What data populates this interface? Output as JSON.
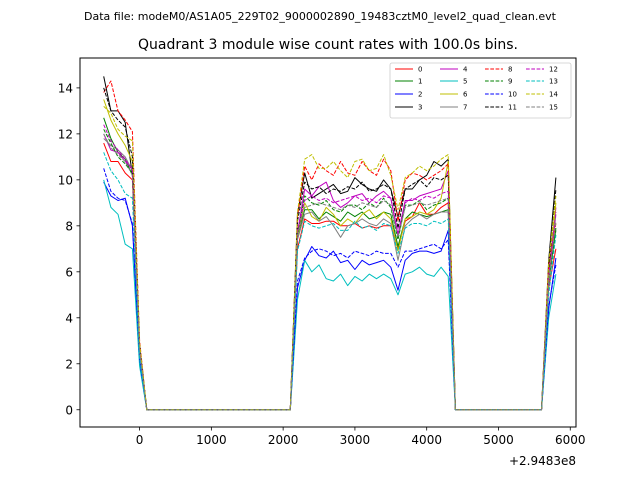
{
  "suptitle": "Data file: modeM0/AS1A05_229T02_9000002890_19483cztM0_level2_quad_clean.evt",
  "chart_data": {
    "type": "line",
    "title": "Quadrant 3 module wise count rates with 100.0s bins.",
    "xlabel": "",
    "ylabel": "",
    "x_offset_label": "+2.9483e8",
    "xlim": [
      -830,
      6080
    ],
    "ylim": [
      -0.75,
      15.3
    ],
    "xticks": [
      0,
      1000,
      2000,
      3000,
      4000,
      5000,
      6000
    ],
    "yticks": [
      0,
      2,
      4,
      6,
      8,
      10,
      12,
      14
    ],
    "legend": {
      "location": "top-right",
      "columns": 4
    },
    "x": [
      -500,
      -400,
      -300,
      -200,
      -100,
      0,
      100,
      200,
      300,
      400,
      500,
      600,
      700,
      800,
      900,
      1000,
      1100,
      1200,
      1300,
      1400,
      1500,
      1600,
      1700,
      1800,
      1900,
      2000,
      2100,
      2200,
      2300,
      2400,
      2500,
      2600,
      2700,
      2800,
      2900,
      3000,
      3100,
      3200,
      3300,
      3400,
      3500,
      3600,
      3700,
      3800,
      3900,
      4000,
      4100,
      4200,
      4300,
      4400,
      4500,
      4600,
      4700,
      4800,
      4900,
      5000,
      5100,
      5200,
      5300,
      5400,
      5500,
      5600,
      5700,
      5800
    ],
    "series": [
      {
        "name": "0",
        "color": "#ff0000",
        "dash": "solid",
        "values": [
          11.6,
          10.8,
          10.8,
          10.3,
          10.0,
          2.5,
          0,
          0,
          0,
          0,
          0,
          0,
          0,
          0,
          0,
          0,
          0,
          0,
          0,
          0,
          0,
          0,
          0,
          0,
          0,
          0,
          0,
          7.0,
          8.3,
          8.1,
          8.1,
          8.2,
          8.2,
          8.0,
          8.0,
          8.1,
          7.9,
          8.0,
          7.9,
          8.0,
          8.0,
          7.0,
          8.2,
          8.4,
          9.0,
          8.5,
          8.5,
          8.8,
          9.0,
          0,
          0,
          0,
          0,
          0,
          0,
          0,
          0,
          0,
          0,
          0,
          0,
          0,
          5.3,
          7.0
        ]
      },
      {
        "name": "1",
        "color": "#008000",
        "dash": "solid",
        "values": [
          12.7,
          11.8,
          11.2,
          10.9,
          10.2,
          2.6,
          0,
          0,
          0,
          0,
          0,
          0,
          0,
          0,
          0,
          0,
          0,
          0,
          0,
          0,
          0,
          0,
          0,
          0,
          0,
          0,
          0,
          7.5,
          8.7,
          8.7,
          8.3,
          8.6,
          8.4,
          8.2,
          8.6,
          8.4,
          8.6,
          8.3,
          8.4,
          8.6,
          8.5,
          7.1,
          8.3,
          8.6,
          8.5,
          8.4,
          8.5,
          8.6,
          8.7,
          0,
          0,
          0,
          0,
          0,
          0,
          0,
          0,
          0,
          0,
          0,
          0,
          0,
          5.5,
          7.9
        ]
      },
      {
        "name": "2",
        "color": "#0000ff",
        "dash": "solid",
        "values": [
          9.9,
          9.3,
          9.1,
          9.2,
          8.0,
          2.1,
          0,
          0,
          0,
          0,
          0,
          0,
          0,
          0,
          0,
          0,
          0,
          0,
          0,
          0,
          0,
          0,
          0,
          0,
          0,
          0,
          0,
          5.3,
          6.5,
          7.1,
          6.7,
          6.6,
          6.9,
          6.4,
          6.5,
          6.1,
          6.5,
          6.3,
          6.4,
          6.5,
          6.2,
          5.2,
          6.5,
          6.8,
          6.9,
          6.9,
          6.8,
          6.9,
          7.8,
          0,
          0,
          0,
          0,
          0,
          0,
          0,
          0,
          0,
          0,
          0,
          0,
          0,
          4.4,
          6.6
        ]
      },
      {
        "name": "3",
        "color": "#000000",
        "dash": "solid",
        "values": [
          14.5,
          13.0,
          13.0,
          12.5,
          10.2,
          2.7,
          0,
          0,
          0,
          0,
          0,
          0,
          0,
          0,
          0,
          0,
          0,
          0,
          0,
          0,
          0,
          0,
          0,
          0,
          0,
          0,
          0,
          8.5,
          10.3,
          9.2,
          9.4,
          9.6,
          9.8,
          9.4,
          9.5,
          10.1,
          9.8,
          9.6,
          9.5,
          10.0,
          9.6,
          8.4,
          9.6,
          9.6,
          10.0,
          10.2,
          10.8,
          10.6,
          10.9,
          0,
          0,
          0,
          0,
          0,
          0,
          0,
          0,
          0,
          0,
          0,
          0,
          0,
          6.5,
          10.1
        ]
      },
      {
        "name": "4",
        "color": "#bf00bf",
        "dash": "solid",
        "values": [
          12.0,
          11.3,
          11.2,
          10.8,
          10.5,
          2.6,
          0,
          0,
          0,
          0,
          0,
          0,
          0,
          0,
          0,
          0,
          0,
          0,
          0,
          0,
          0,
          0,
          0,
          0,
          0,
          0,
          0,
          7.7,
          9.6,
          9.3,
          9.7,
          9.9,
          9.1,
          8.8,
          9.0,
          9.3,
          9.4,
          9.0,
          9.3,
          9.5,
          9.2,
          7.6,
          9.1,
          9.1,
          9.3,
          9.4,
          9.5,
          9.6,
          10.4,
          0,
          0,
          0,
          0,
          0,
          0,
          0,
          0,
          0,
          0,
          0,
          0,
          0,
          5.7,
          8.8
        ]
      },
      {
        "name": "5",
        "color": "#00bfbf",
        "dash": "solid",
        "values": [
          10.0,
          8.8,
          8.5,
          7.2,
          7.0,
          1.9,
          0,
          0,
          0,
          0,
          0,
          0,
          0,
          0,
          0,
          0,
          0,
          0,
          0,
          0,
          0,
          0,
          0,
          0,
          0,
          0,
          0,
          4.8,
          6.5,
          6.0,
          6.3,
          5.7,
          5.6,
          5.9,
          5.4,
          5.8,
          5.6,
          5.9,
          5.7,
          5.9,
          5.7,
          5.0,
          5.9,
          6.0,
          6.2,
          5.9,
          5.8,
          6.2,
          5.8,
          0,
          0,
          0,
          0,
          0,
          0,
          0,
          0,
          0,
          0,
          0,
          0,
          0,
          4.0,
          5.9
        ]
      },
      {
        "name": "6",
        "color": "#bfbf00",
        "dash": "solid",
        "values": [
          13.5,
          12.6,
          12.0,
          11.5,
          10.8,
          2.7,
          0,
          0,
          0,
          0,
          0,
          0,
          0,
          0,
          0,
          0,
          0,
          0,
          0,
          0,
          0,
          0,
          0,
          0,
          0,
          0,
          0,
          7.5,
          9.0,
          8.4,
          8.2,
          8.8,
          8.5,
          8.0,
          8.3,
          8.1,
          8.5,
          8.7,
          8.3,
          8.6,
          8.3,
          6.9,
          8.3,
          8.4,
          8.6,
          8.5,
          8.7,
          9.2,
          10.8,
          0,
          0,
          0,
          0,
          0,
          0,
          0,
          0,
          0,
          0,
          0,
          0,
          0,
          5.7,
          9.0
        ]
      },
      {
        "name": "7",
        "color": "#808080",
        "dash": "solid",
        "values": [
          11.8,
          11.5,
          11.3,
          11.0,
          10.4,
          2.6,
          0,
          0,
          0,
          0,
          0,
          0,
          0,
          0,
          0,
          0,
          0,
          0,
          0,
          0,
          0,
          0,
          0,
          0,
          0,
          0,
          0,
          7.4,
          8.5,
          8.6,
          8.2,
          8.4,
          8.0,
          7.5,
          8.0,
          8.1,
          8.3,
          8.1,
          8.0,
          8.3,
          8.1,
          6.5,
          8.0,
          8.3,
          8.5,
          8.3,
          8.5,
          8.6,
          8.6,
          0,
          0,
          0,
          0,
          0,
          0,
          0,
          0,
          0,
          0,
          0,
          0,
          0,
          5.5,
          8.5
        ]
      },
      {
        "name": "8",
        "color": "#ff0000",
        "dash": "dashed",
        "values": [
          13.8,
          14.3,
          13.0,
          12.6,
          12.1,
          3.0,
          0,
          0,
          0,
          0,
          0,
          0,
          0,
          0,
          0,
          0,
          0,
          0,
          0,
          0,
          0,
          0,
          0,
          0,
          0,
          0,
          0,
          8.4,
          10.6,
          10.0,
          10.7,
          10.4,
          10.2,
          10.8,
          10.3,
          10.2,
          10.8,
          10.4,
          10.2,
          10.9,
          10.4,
          8.2,
          10.0,
          10.3,
          10.2,
          10.0,
          10.2,
          10.4,
          10.7,
          0,
          0,
          0,
          0,
          0,
          0,
          0,
          0,
          0,
          0,
          0,
          0,
          0,
          6.3,
          8.1
        ]
      },
      {
        "name": "9",
        "color": "#008000",
        "dash": "dashed",
        "values": [
          12.2,
          11.6,
          11.0,
          10.7,
          10.3,
          2.6,
          0,
          0,
          0,
          0,
          0,
          0,
          0,
          0,
          0,
          0,
          0,
          0,
          0,
          0,
          0,
          0,
          0,
          0,
          0,
          0,
          0,
          7.6,
          9.3,
          9.0,
          8.9,
          9.1,
          8.7,
          8.6,
          8.9,
          8.9,
          8.7,
          9.0,
          8.8,
          9.2,
          8.8,
          7.4,
          8.9,
          8.9,
          9.1,
          8.7,
          8.9,
          9.0,
          9.2,
          0,
          0,
          0,
          0,
          0,
          0,
          0,
          0,
          0,
          0,
          0,
          0,
          0,
          5.6,
          7.8
        ]
      },
      {
        "name": "10",
        "color": "#0000ff",
        "dash": "dashed",
        "values": [
          10.5,
          9.5,
          9.2,
          9.1,
          8.1,
          2.2,
          0,
          0,
          0,
          0,
          0,
          0,
          0,
          0,
          0,
          0,
          0,
          0,
          0,
          0,
          0,
          0,
          0,
          0,
          0,
          0,
          0,
          5.6,
          6.6,
          6.9,
          7.0,
          6.9,
          6.7,
          6.8,
          6.6,
          6.9,
          6.8,
          6.7,
          6.9,
          6.8,
          6.8,
          6.2,
          6.9,
          6.9,
          7.0,
          7.1,
          7.2,
          7.0,
          7.4,
          0,
          0,
          0,
          0,
          0,
          0,
          0,
          0,
          0,
          0,
          0,
          0,
          0,
          4.5,
          6.3
        ]
      },
      {
        "name": "11",
        "color": "#000000",
        "dash": "dashed",
        "values": [
          14.0,
          13.0,
          12.6,
          12.3,
          11.0,
          2.8,
          0,
          0,
          0,
          0,
          0,
          0,
          0,
          0,
          0,
          0,
          0,
          0,
          0,
          0,
          0,
          0,
          0,
          0,
          0,
          0,
          0,
          8.2,
          9.9,
          9.6,
          9.7,
          9.4,
          9.6,
          9.5,
          9.7,
          9.6,
          9.9,
          9.5,
          9.6,
          9.8,
          9.6,
          7.9,
          9.6,
          9.8,
          10.0,
          9.7,
          10.1,
          10.0,
          10.2,
          0,
          0,
          0,
          0,
          0,
          0,
          0,
          0,
          0,
          0,
          0,
          0,
          0,
          6.1,
          9.6
        ]
      },
      {
        "name": "12",
        "color": "#bf00bf",
        "dash": "dashed",
        "values": [
          12.4,
          11.7,
          11.3,
          10.9,
          10.4,
          2.6,
          0,
          0,
          0,
          0,
          0,
          0,
          0,
          0,
          0,
          0,
          0,
          0,
          0,
          0,
          0,
          0,
          0,
          0,
          0,
          0,
          0,
          7.8,
          9.1,
          9.3,
          9.1,
          9.2,
          9.0,
          9.1,
          9.2,
          9.3,
          9.1,
          9.2,
          9.0,
          9.3,
          9.2,
          7.7,
          9.0,
          9.2,
          9.1,
          9.3,
          9.2,
          9.4,
          9.5,
          0,
          0,
          0,
          0,
          0,
          0,
          0,
          0,
          0,
          0,
          0,
          0,
          0,
          5.8,
          8.6
        ]
      },
      {
        "name": "13",
        "color": "#00bfbf",
        "dash": "dashed",
        "values": [
          11.2,
          10.4,
          10.0,
          9.4,
          9.2,
          2.3,
          0,
          0,
          0,
          0,
          0,
          0,
          0,
          0,
          0,
          0,
          0,
          0,
          0,
          0,
          0,
          0,
          0,
          0,
          0,
          0,
          0,
          6.9,
          8.2,
          8.0,
          7.9,
          8.0,
          8.1,
          7.8,
          7.8,
          8.2,
          7.9,
          8.0,
          7.8,
          8.1,
          8.0,
          6.8,
          7.9,
          8.1,
          8.1,
          8.0,
          8.2,
          8.1,
          8.3,
          0,
          0,
          0,
          0,
          0,
          0,
          0,
          0,
          0,
          0,
          0,
          0,
          0,
          5.0,
          7.6
        ]
      },
      {
        "name": "14",
        "color": "#bfbf00",
        "dash": "dashed",
        "values": [
          13.2,
          12.9,
          12.2,
          11.9,
          11.7,
          2.9,
          0,
          0,
          0,
          0,
          0,
          0,
          0,
          0,
          0,
          0,
          0,
          0,
          0,
          0,
          0,
          0,
          0,
          0,
          0,
          0,
          0,
          8.6,
          10.9,
          11.1,
          10.5,
          10.5,
          10.8,
          10.4,
          10.1,
          10.8,
          10.9,
          10.4,
          10.5,
          11.1,
          10.2,
          8.7,
          10.1,
          10.3,
          10.6,
          10.4,
          10.6,
          10.9,
          11.1,
          0,
          0,
          0,
          0,
          0,
          0,
          0,
          0,
          0,
          0,
          0,
          0,
          0,
          6.4,
          9.3
        ]
      },
      {
        "name": "15",
        "color": "#808080",
        "dash": "dashed",
        "values": [
          12.0,
          11.4,
          11.1,
          10.8,
          10.2,
          2.6,
          0,
          0,
          0,
          0,
          0,
          0,
          0,
          0,
          0,
          0,
          0,
          0,
          0,
          0,
          0,
          0,
          0,
          0,
          0,
          0,
          0,
          7.6,
          8.8,
          8.9,
          9.0,
          8.9,
          8.8,
          8.7,
          8.9,
          8.8,
          9.0,
          8.9,
          8.8,
          9.1,
          8.9,
          7.5,
          8.8,
          8.9,
          9.0,
          8.9,
          9.0,
          9.1,
          9.2,
          0,
          0,
          0,
          0,
          0,
          0,
          0,
          0,
          0,
          0,
          0,
          0,
          0,
          5.6,
          8.2
        ]
      }
    ]
  }
}
